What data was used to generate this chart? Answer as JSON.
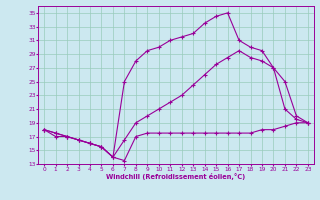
{
  "xlabel": "Windchill (Refroidissement éolien,°C)",
  "bg_color": "#cce8f0",
  "grid_color": "#99ccbb",
  "line_color": "#990099",
  "xlim": [
    -0.5,
    23.5
  ],
  "ylim": [
    13,
    36
  ],
  "yticks": [
    13,
    15,
    17,
    19,
    21,
    23,
    25,
    27,
    29,
    31,
    33,
    35
  ],
  "xticks": [
    0,
    1,
    2,
    3,
    4,
    5,
    6,
    7,
    8,
    9,
    10,
    11,
    12,
    13,
    14,
    15,
    16,
    17,
    18,
    19,
    20,
    21,
    22,
    23
  ],
  "line1_x": [
    0,
    1,
    2,
    3,
    4,
    5,
    6,
    7,
    8,
    9,
    10,
    11,
    12,
    13,
    14,
    15,
    16,
    17,
    18,
    19,
    20,
    21,
    22,
    23
  ],
  "line1_y": [
    18,
    17,
    17,
    16.5,
    16,
    15.5,
    14,
    13.5,
    17,
    17.5,
    17.5,
    17.5,
    17.5,
    17.5,
    17.5,
    17.5,
    17.5,
    17.5,
    17.5,
    18,
    18,
    18.5,
    19,
    19
  ],
  "line2_x": [
    0,
    1,
    2,
    3,
    4,
    5,
    6,
    7,
    8,
    9,
    10,
    11,
    12,
    13,
    14,
    15,
    16,
    17,
    18,
    19,
    20,
    21,
    22,
    23
  ],
  "line2_y": [
    18,
    17.5,
    17,
    16.5,
    16,
    15.5,
    14,
    16.5,
    19,
    20,
    21,
    22,
    23,
    24.5,
    26,
    27.5,
    28.5,
    29.5,
    28.5,
    28,
    27,
    25,
    20,
    19
  ],
  "line3_x": [
    0,
    1,
    2,
    3,
    4,
    5,
    6,
    7,
    8,
    9,
    10,
    11,
    12,
    13,
    14,
    15,
    16,
    17,
    18,
    19,
    20,
    21,
    22,
    23
  ],
  "line3_y": [
    18,
    17.5,
    17,
    16.5,
    16,
    15.5,
    14,
    25,
    28,
    29.5,
    30,
    31,
    31.5,
    32,
    33.5,
    34.5,
    35,
    31,
    30,
    29.5,
    27,
    21,
    19.5,
    19
  ]
}
